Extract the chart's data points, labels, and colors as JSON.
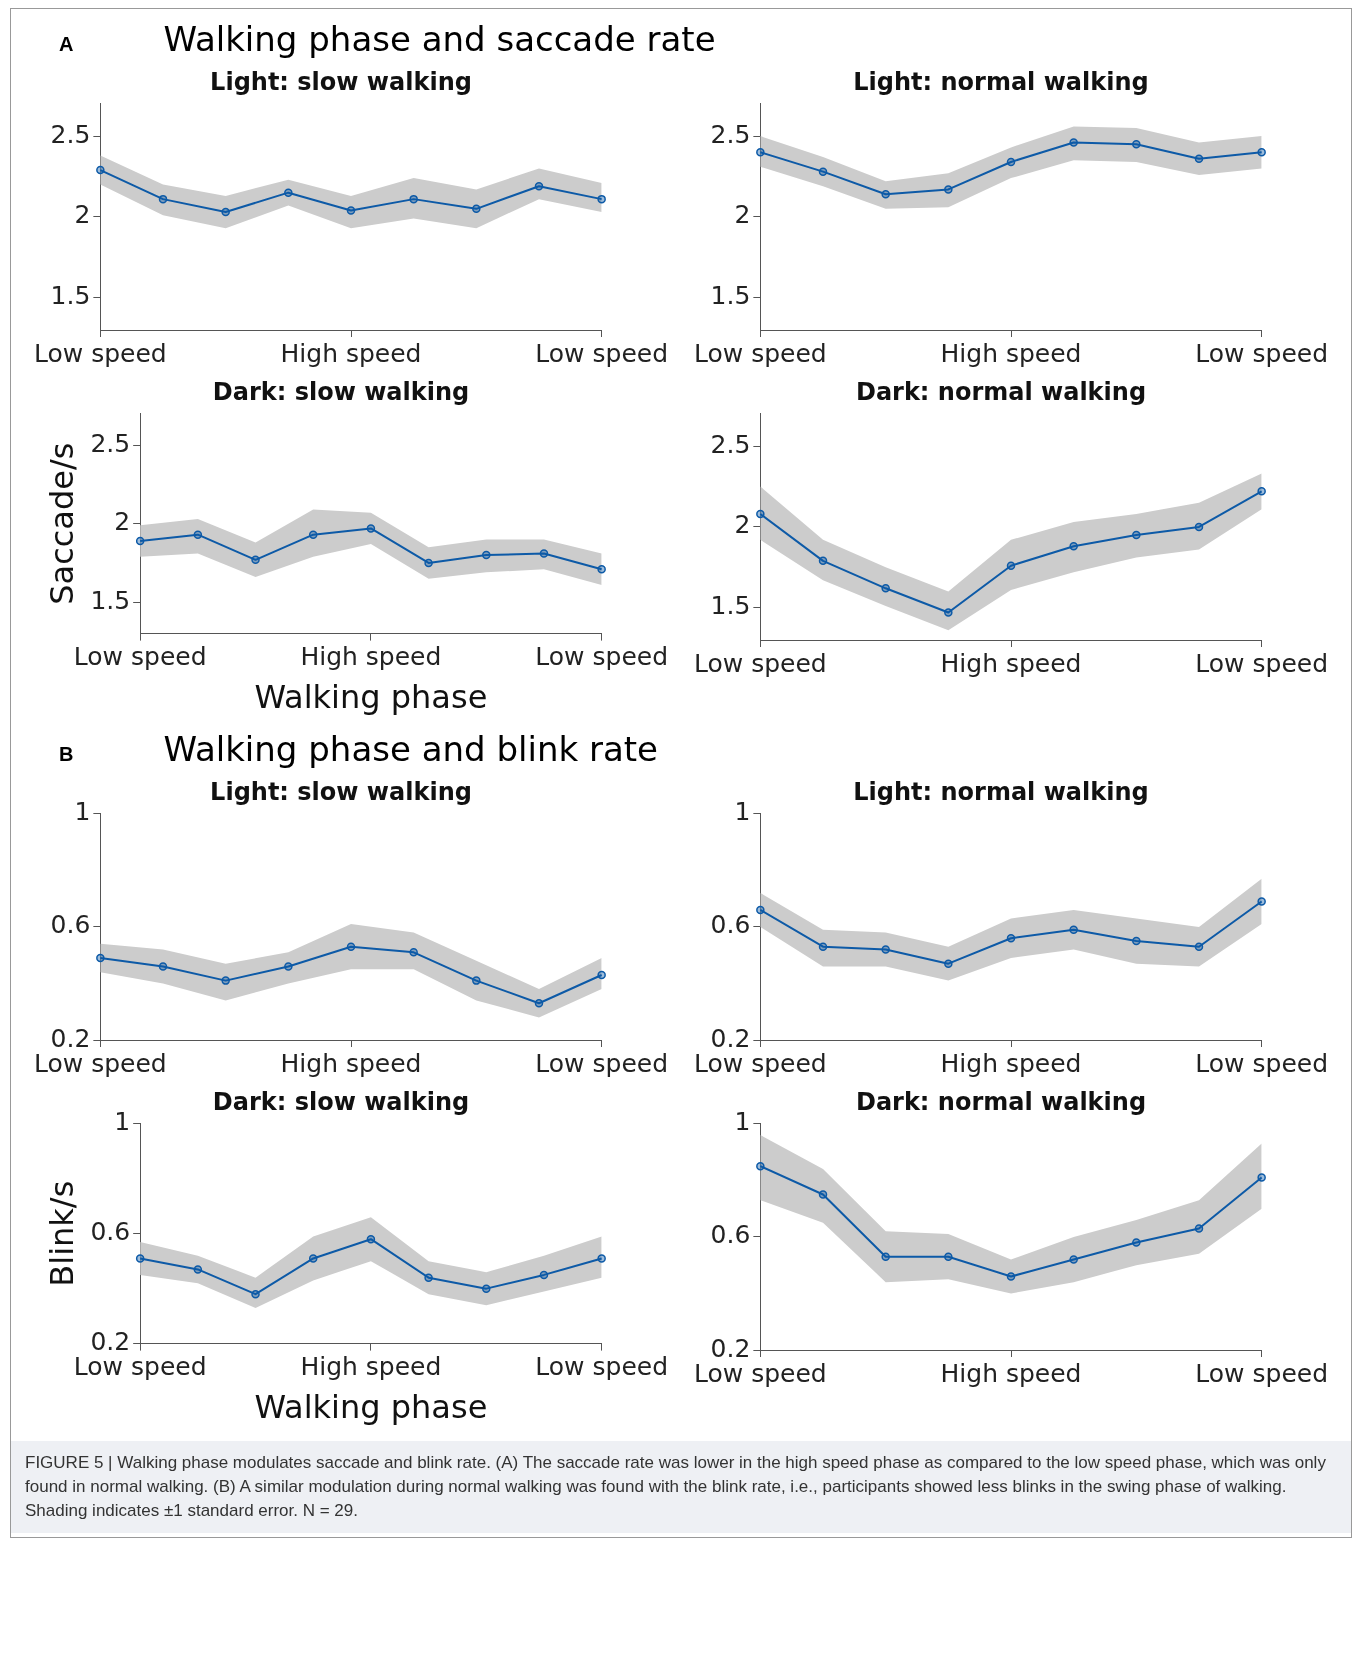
{
  "chart_data": [
    {
      "type": "line",
      "title": "Light: slow walking",
      "annotations": [
        "A",
        "Walking phase and saccade rate"
      ],
      "categories": [
        "Low speed",
        null,
        null,
        null,
        "High speed",
        null,
        null,
        null,
        "Low speed"
      ],
      "ylim": [
        1.3,
        2.7
      ],
      "yticks": [
        1.5,
        2,
        2.5
      ],
      "marker": "circle",
      "legend": false,
      "grid": false,
      "series": [
        {
          "color": "#0d5aa7",
          "values": [
            2.29,
            2.11,
            2.03,
            2.15,
            2.04,
            2.11,
            2.05,
            2.19,
            2.11
          ],
          "lower": [
            2.2,
            2.01,
            1.93,
            2.07,
            1.93,
            1.99,
            1.93,
            2.11,
            2.03
          ],
          "upper": [
            2.38,
            2.2,
            2.13,
            2.23,
            2.13,
            2.24,
            2.17,
            2.3,
            2.21
          ]
        }
      ]
    },
    {
      "type": "line",
      "title": "Light: normal walking",
      "categories": [
        "Low speed",
        null,
        null,
        null,
        "High speed",
        null,
        null,
        null,
        "Low speed"
      ],
      "ylim": [
        1.3,
        2.7
      ],
      "yticks": [
        1.5,
        2,
        2.5
      ],
      "marker": "circle",
      "legend": false,
      "grid": false,
      "series": [
        {
          "color": "#0d5aa7",
          "values": [
            2.4,
            2.28,
            2.14,
            2.17,
            2.34,
            2.46,
            2.45,
            2.36,
            2.4
          ],
          "lower": [
            2.31,
            2.19,
            2.05,
            2.06,
            2.24,
            2.35,
            2.34,
            2.26,
            2.3
          ],
          "upper": [
            2.5,
            2.37,
            2.22,
            2.27,
            2.43,
            2.56,
            2.55,
            2.46,
            2.5
          ]
        }
      ]
    },
    {
      "type": "line",
      "title": "Dark: slow walking",
      "xlabel": "Walking phase",
      "ylabel": "Saccade/s",
      "categories": [
        "Low speed",
        null,
        null,
        null,
        "High speed",
        null,
        null,
        null,
        "Low speed"
      ],
      "ylim": [
        1.3,
        2.7
      ],
      "yticks": [
        1.5,
        2,
        2.5
      ],
      "marker": "circle",
      "legend": false,
      "grid": false,
      "series": [
        {
          "color": "#0d5aa7",
          "values": [
            1.89,
            1.93,
            1.77,
            1.93,
            1.97,
            1.75,
            1.8,
            1.81,
            1.71
          ],
          "lower": [
            1.79,
            1.81,
            1.66,
            1.79,
            1.87,
            1.65,
            1.69,
            1.71,
            1.61
          ],
          "upper": [
            1.99,
            2.03,
            1.88,
            2.09,
            2.07,
            1.85,
            1.9,
            1.9,
            1.81
          ]
        }
      ]
    },
    {
      "type": "line",
      "title": "Dark: normal walking",
      "categories": [
        "Low speed",
        null,
        null,
        null,
        "High speed",
        null,
        null,
        null,
        "Low speed"
      ],
      "ylim": [
        1.3,
        2.7
      ],
      "yticks": [
        1.5,
        2,
        2.5
      ],
      "marker": "circle",
      "legend": false,
      "grid": false,
      "series": [
        {
          "color": "#0d5aa7",
          "values": [
            2.08,
            1.79,
            1.62,
            1.47,
            1.76,
            1.88,
            1.95,
            2.0,
            2.22
          ],
          "lower": [
            1.92,
            1.67,
            1.51,
            1.36,
            1.61,
            1.72,
            1.81,
            1.86,
            2.11
          ],
          "upper": [
            2.25,
            1.92,
            1.75,
            1.6,
            1.92,
            2.03,
            2.08,
            2.15,
            2.33
          ]
        }
      ]
    },
    {
      "type": "line",
      "title": "Light: slow walking",
      "annotations": [
        "B",
        "Walking phase and blink rate"
      ],
      "categories": [
        "Low speed",
        null,
        null,
        null,
        "High speed",
        null,
        null,
        null,
        "Low speed"
      ],
      "ylim": [
        0.2,
        1
      ],
      "yticks": [
        0.2,
        0.6,
        1
      ],
      "marker": "circle",
      "legend": false,
      "grid": false,
      "series": [
        {
          "color": "#0d5aa7",
          "values": [
            0.49,
            0.46,
            0.41,
            0.46,
            0.53,
            0.51,
            0.41,
            0.33,
            0.43
          ],
          "lower": [
            0.44,
            0.4,
            0.34,
            0.4,
            0.45,
            0.45,
            0.34,
            0.28,
            0.38
          ],
          "upper": [
            0.54,
            0.52,
            0.47,
            0.51,
            0.61,
            0.58,
            0.48,
            0.38,
            0.49
          ]
        }
      ]
    },
    {
      "type": "line",
      "title": "Light: normal walking",
      "categories": [
        "Low speed",
        null,
        null,
        null,
        "High speed",
        null,
        null,
        null,
        "Low speed"
      ],
      "ylim": [
        0.2,
        1
      ],
      "yticks": [
        0.2,
        0.6,
        1
      ],
      "marker": "circle",
      "legend": false,
      "grid": false,
      "series": [
        {
          "color": "#0d5aa7",
          "values": [
            0.66,
            0.53,
            0.52,
            0.47,
            0.56,
            0.59,
            0.55,
            0.53,
            0.69
          ],
          "lower": [
            0.6,
            0.46,
            0.46,
            0.41,
            0.49,
            0.52,
            0.47,
            0.46,
            0.61
          ],
          "upper": [
            0.72,
            0.59,
            0.58,
            0.53,
            0.63,
            0.66,
            0.63,
            0.6,
            0.77
          ]
        }
      ]
    },
    {
      "type": "line",
      "title": "Dark: slow walking",
      "xlabel": "Walking phase",
      "ylabel": "Blink/s",
      "categories": [
        "Low speed",
        null,
        null,
        null,
        "High speed",
        null,
        null,
        null,
        "Low speed"
      ],
      "ylim": [
        0.2,
        1
      ],
      "yticks": [
        0.2,
        0.6,
        1
      ],
      "marker": "circle",
      "legend": false,
      "grid": false,
      "series": [
        {
          "color": "#0d5aa7",
          "values": [
            0.51,
            0.47,
            0.38,
            0.51,
            0.58,
            0.44,
            0.4,
            0.45,
            0.51
          ],
          "lower": [
            0.45,
            0.42,
            0.33,
            0.43,
            0.5,
            0.38,
            0.34,
            0.39,
            0.44
          ],
          "upper": [
            0.57,
            0.52,
            0.44,
            0.59,
            0.66,
            0.5,
            0.46,
            0.52,
            0.59
          ]
        }
      ]
    },
    {
      "type": "line",
      "title": "Dark: normal walking",
      "annotations": [
        "FIGURE 5 | Walking phase modulates saccade and blink rate. (A) The saccade rate was lower in the high speed phase as compared to the low speed phase, which was only found in normal walking. (B) A similar modulation during normal walking was found with the blink rate, i.e., participants showed less blinks in the swing phase of walking. Shading indicates ±1 standard error. N = 29."
      ],
      "categories": [
        "Low speed",
        null,
        null,
        null,
        "High speed",
        null,
        null,
        null,
        "Low speed"
      ],
      "ylim": [
        0.2,
        1
      ],
      "yticks": [
        0.2,
        0.6,
        1
      ],
      "marker": "circle",
      "legend": false,
      "grid": false,
      "series": [
        {
          "color": "#0d5aa7",
          "values": [
            0.85,
            0.75,
            0.53,
            0.53,
            0.46,
            0.52,
            0.58,
            0.63,
            0.81
          ],
          "lower": [
            0.73,
            0.65,
            0.44,
            0.45,
            0.4,
            0.44,
            0.5,
            0.54,
            0.7
          ],
          "upper": [
            0.96,
            0.84,
            0.62,
            0.61,
            0.52,
            0.6,
            0.66,
            0.73,
            0.93
          ]
        }
      ]
    }
  ]
}
